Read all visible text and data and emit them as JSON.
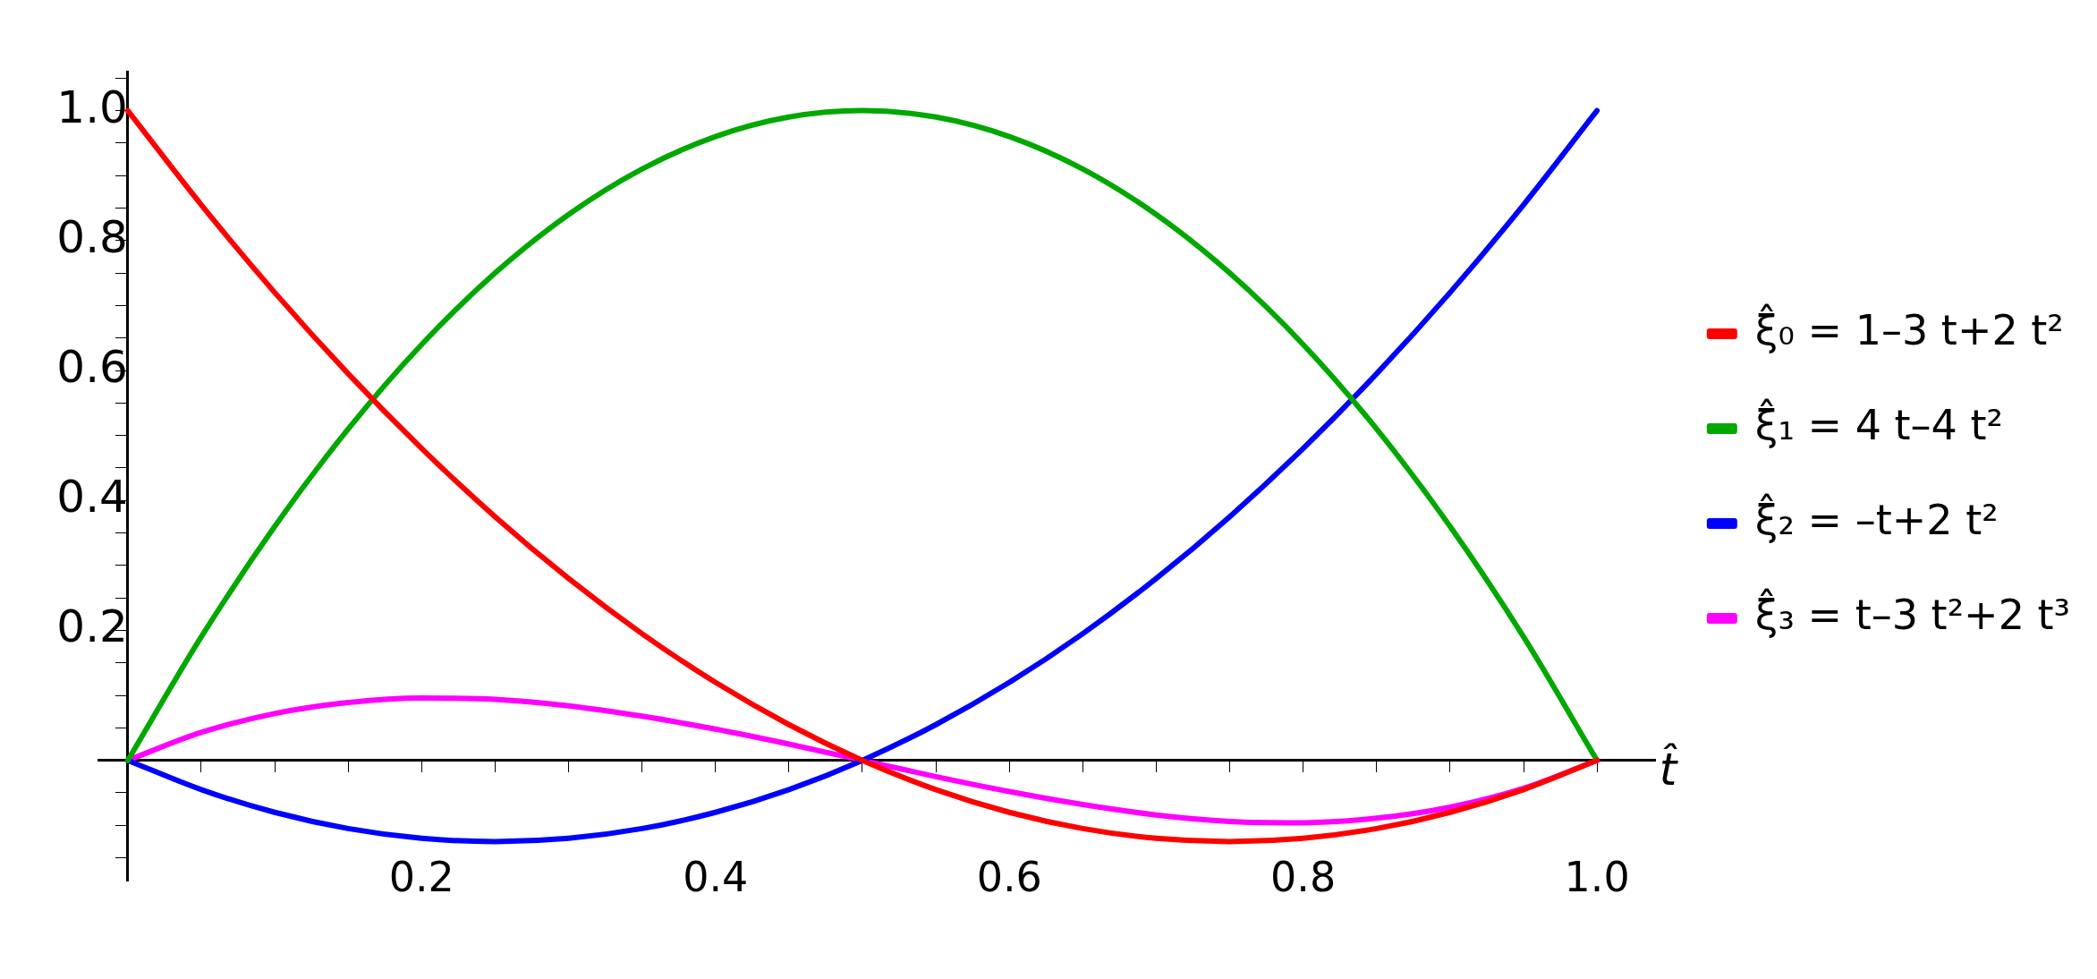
{
  "chart_data": {
    "type": "line",
    "xlabel": "t̂",
    "x": [
      0,
      0.05,
      0.1,
      0.15,
      0.2,
      0.25,
      0.3,
      0.35,
      0.4,
      0.45,
      0.5,
      0.55,
      0.6,
      0.65,
      0.7,
      0.75,
      0.8,
      0.85,
      0.9,
      0.95,
      1
    ],
    "series": [
      {
        "name": "ξ̂₀ = 1–3 t+2 t²",
        "color": "#ff0000",
        "values": [
          1,
          0.855,
          0.72,
          0.595,
          0.48,
          0.375,
          0.28,
          0.195,
          0.12,
          0.055,
          0,
          -0.045,
          -0.08,
          -0.105,
          -0.12,
          -0.125,
          -0.12,
          -0.105,
          -0.08,
          -0.045,
          0
        ]
      },
      {
        "name": "ξ̂₁ = 4 t–4 t²",
        "color": "#00a800",
        "values": [
          0,
          0.19,
          0.36,
          0.51,
          0.64,
          0.75,
          0.84,
          0.91,
          0.96,
          0.99,
          1,
          0.99,
          0.96,
          0.91,
          0.84,
          0.75,
          0.64,
          0.51,
          0.36,
          0.19,
          0
        ]
      },
      {
        "name": "ξ̂₂ = –t+2 t²",
        "color": "#0000ff",
        "values": [
          0,
          -0.045,
          -0.08,
          -0.105,
          -0.12,
          -0.125,
          -0.12,
          -0.105,
          -0.08,
          -0.045,
          0,
          0.055,
          0.12,
          0.195,
          0.28,
          0.375,
          0.48,
          0.595,
          0.72,
          0.855,
          1
        ]
      },
      {
        "name": "ξ̂₃ = t–3 t²+2 t³",
        "color": "#ff00ff",
        "values": [
          0,
          0.043,
          0.072,
          0.089,
          0.096,
          0.094,
          0.084,
          0.068,
          0.048,
          0.025,
          0,
          -0.025,
          -0.048,
          -0.068,
          -0.084,
          -0.094,
          -0.096,
          -0.089,
          -0.072,
          -0.043,
          0
        ]
      }
    ],
    "xlim": [
      -0.02,
      1.04
    ],
    "ylim": [
      -0.185,
      1.06
    ],
    "xticks": [
      {
        "value": 0.05,
        "label": null
      },
      {
        "value": 0.1,
        "label": null
      },
      {
        "value": 0.15,
        "label": null
      },
      0.2,
      {
        "value": 0.25,
        "label": null
      },
      {
        "value": 0.3,
        "label": null
      },
      {
        "value": 0.35,
        "label": null
      },
      0.4,
      {
        "value": 0.45,
        "label": null
      },
      {
        "value": 0.5,
        "label": null
      },
      {
        "value": 0.55,
        "label": null
      },
      0.6,
      {
        "value": 0.65,
        "label": null
      },
      {
        "value": 0.7,
        "label": null
      },
      {
        "value": 0.75,
        "label": null
      },
      0.8,
      {
        "value": 0.85,
        "label": null
      },
      {
        "value": 0.9,
        "label": null
      },
      {
        "value": 0.95,
        "label": null
      },
      {
        "value": 1,
        "label": "1.0"
      }
    ],
    "yticks": [
      {
        "value": -0.15,
        "label": null
      },
      {
        "value": -0.1,
        "label": null
      },
      {
        "value": -0.05,
        "label": null
      },
      {
        "value": 0.05,
        "label": null
      },
      {
        "value": 0.1,
        "label": null
      },
      {
        "value": 0.15,
        "label": null
      },
      0.2,
      {
        "value": 0.25,
        "label": null
      },
      {
        "value": 0.3,
        "label": null
      },
      {
        "value": 0.35,
        "label": null
      },
      0.4,
      {
        "value": 0.45,
        "label": null
      },
      {
        "value": 0.5,
        "label": null
      },
      {
        "value": 0.55,
        "label": null
      },
      0.6,
      {
        "value": 0.65,
        "label": null
      },
      {
        "value": 0.7,
        "label": null
      },
      {
        "value": 0.75,
        "label": null
      },
      0.8,
      {
        "value": 0.85,
        "label": null
      },
      {
        "value": 0.9,
        "label": null
      },
      {
        "value": 0.95,
        "label": null
      },
      {
        "value": 1,
        "label": "1.0"
      },
      {
        "value": 1.05,
        "label": null
      }
    ],
    "grid": false,
    "legend": "right",
    "marker": "none",
    "line_style": "solid"
  }
}
